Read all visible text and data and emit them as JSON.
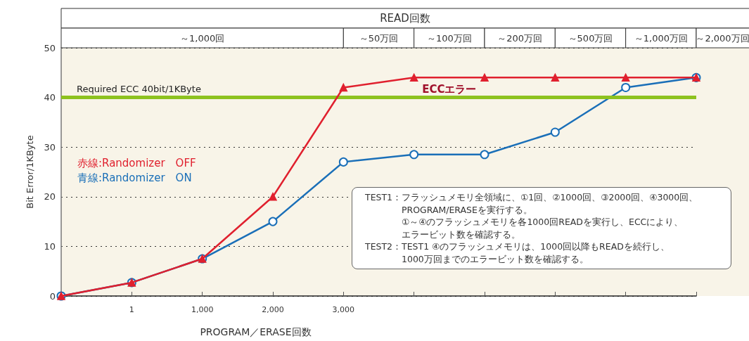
{
  "chart_data": {
    "type": "line",
    "title": "READ回数",
    "xlabel": "PROGRAM／ERASE回数",
    "ylabel": "Bit Error/1KByte",
    "categories": [
      null,
      "1",
      "1,000",
      "2,000",
      "3,000",
      null,
      null,
      null,
      null,
      null
    ],
    "series": [
      {
        "name": "赤線:Randomizer　OFF",
        "color": "#e0202e",
        "marker": "triangle",
        "values": [
          0,
          2.7,
          7.5,
          20,
          42,
          44,
          44,
          44,
          44,
          44
        ]
      },
      {
        "name": "青線:Randomizer　ON",
        "color": "#1a6fb8",
        "marker": "circle",
        "values": [
          0,
          2.7,
          7.5,
          15,
          27,
          28.5,
          28.5,
          33,
          42,
          44
        ]
      }
    ],
    "ylim": [
      0,
      50
    ],
    "yticks": [
      0,
      10,
      20,
      30,
      40,
      50
    ],
    "grid": "y",
    "legend": "left",
    "line_style": "solid",
    "ref_lines": [
      {
        "axis": "y",
        "value": 40,
        "label": "Required ECC 40bit/1KByte",
        "color": "#8dc21f"
      }
    ],
    "annotations": [
      "～1,000回",
      "～50万回",
      "～100万回",
      "～200万回",
      "～500万回",
      "～1,000万回",
      "～2,000万回",
      "ECCエラー",
      "TEST1：フラッシュメモリ全領域に、①1回、②1000回、③2000回、④3000回、",
      "PROGRAM/ERASEを実行する。",
      "①～④のフラッシュメモリを各1000回READを実行し、ECCにより、",
      "エラービット数を確認する。",
      "TEST2：TEST1 ④のフラッシュメモリは、1000回以降もREADを続行し、",
      "1000万回までのエラービット数を確認する。"
    ]
  }
}
